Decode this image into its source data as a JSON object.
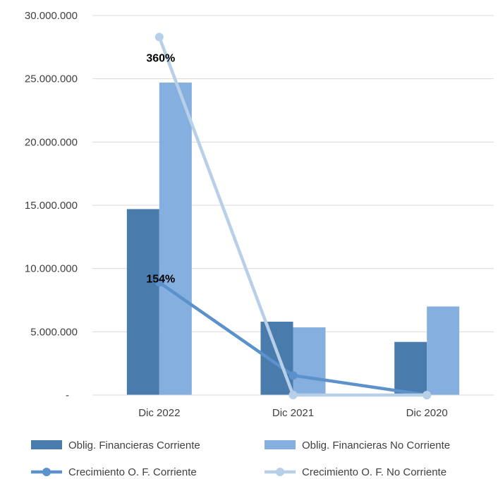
{
  "chart_data": {
    "type": "bar",
    "categories": [
      "Dic 2022",
      "Dic 2021",
      "Dic 2020"
    ],
    "bar_series": [
      {
        "name": "Oblig. Financieras Corriente",
        "values": [
          14700000,
          5800000,
          4200000
        ],
        "color": "#4a7bad"
      },
      {
        "name": "Oblig. Financieras No Corriente",
        "values": [
          24700000,
          5350000,
          7000000
        ],
        "color": "#85afde"
      }
    ],
    "line_series": [
      {
        "name": "Crecimiento O. F. Corriente",
        "values": [
          8900000,
          1550000,
          0
        ],
        "color": "#5b92cc"
      },
      {
        "name": "Crecimiento O. F. No Corriente",
        "values": [
          28300000,
          0,
          0
        ],
        "color": "#b8cfe8"
      }
    ],
    "data_labels": [
      {
        "series": "Crecimiento O. F. No Corriente",
        "category": "Dic 2022",
        "text": "360%"
      },
      {
        "series": "Crecimiento O. F. Corriente",
        "category": "Dic 2022",
        "text": "154%"
      }
    ],
    "y_ticks": [
      {
        "value": 0,
        "label": "-"
      },
      {
        "value": 5000000,
        "label": "5.000.000"
      },
      {
        "value": 10000000,
        "label": "10.000.000"
      },
      {
        "value": 15000000,
        "label": "15.000.000"
      },
      {
        "value": 20000000,
        "label": "20.000.000"
      },
      {
        "value": 25000000,
        "label": "25.000.000"
      },
      {
        "value": 30000000,
        "label": "30.000.000"
      }
    ],
    "ylim": [
      0,
      30000000
    ],
    "grid": true,
    "legend_position": "bottom",
    "title": "",
    "xlabel": "",
    "ylabel": ""
  }
}
